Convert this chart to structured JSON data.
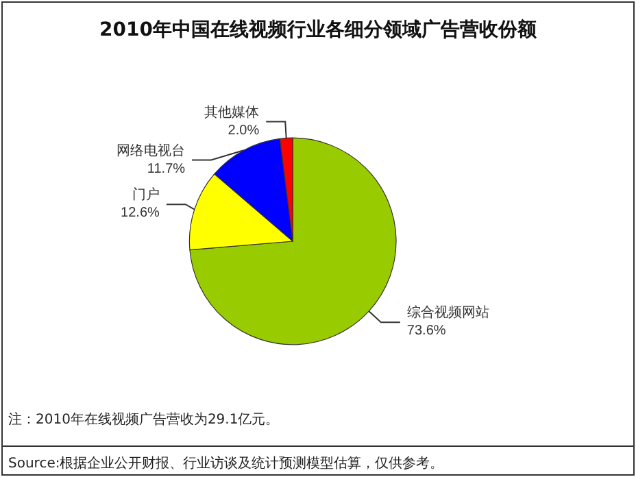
{
  "chart_data": {
    "type": "pie",
    "title": "2010年中国在线视频行业各细分领域广告营收份额",
    "categories": [
      "综合视频网站",
      "门户",
      "网络电视台",
      "其他媒体"
    ],
    "values": [
      73.6,
      12.6,
      11.7,
      2.0
    ],
    "value_labels": [
      "73.6%",
      "12.6%",
      "11.7%",
      "2.0%"
    ],
    "colors": [
      "#99cc00",
      "#ffff00",
      "#0000ff",
      "#ff0000"
    ],
    "annotations": [
      "注：2010年在线视频广告营收为29.1亿元。",
      "Source:根据企业公开财报、行业访谈及统计预测模型估算，仅供参考。"
    ],
    "legend": false
  }
}
